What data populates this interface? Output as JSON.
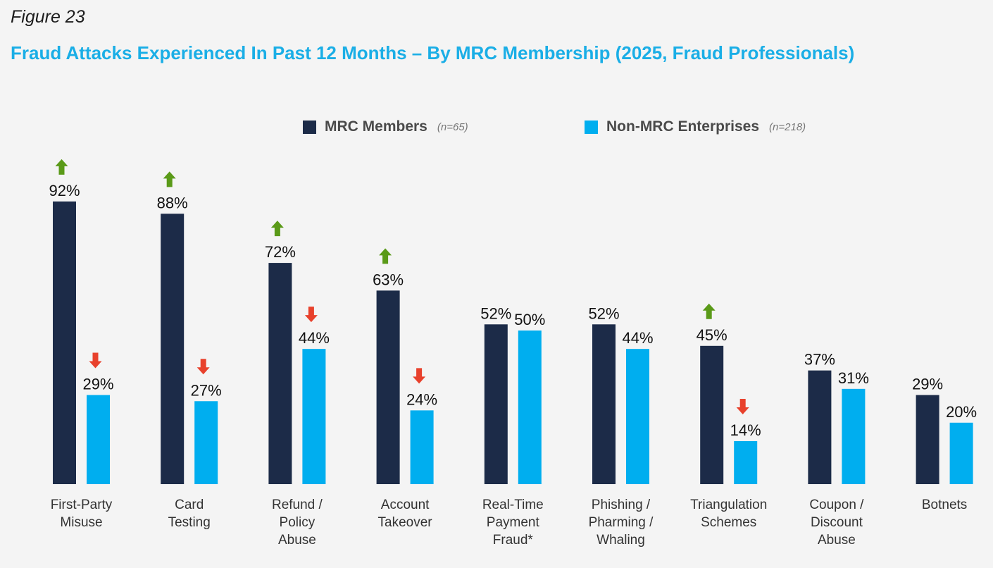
{
  "figure_label": "Figure 23",
  "chart_data": {
    "type": "bar",
    "title": "Fraud Attacks Experienced In Past 12 Months – By MRC Membership (2025, Fraud Professionals)",
    "xlabel": "",
    "ylabel": "",
    "ylim": [
      0,
      100
    ],
    "grid": false,
    "legend_position": "top-center",
    "categories": [
      [
        "First-Party",
        "Misuse"
      ],
      [
        "Card",
        "Testing"
      ],
      [
        "Refund /",
        "Policy",
        "Abuse"
      ],
      [
        "Account",
        "Takeover"
      ],
      [
        "Real-Time",
        "Payment",
        "Fraud*"
      ],
      [
        "Phishing /",
        "Pharming /",
        "Whaling"
      ],
      [
        "Triangulation",
        "Schemes"
      ],
      [
        "Coupon /",
        "Discount",
        "Abuse"
      ],
      [
        "Botnets"
      ]
    ],
    "series": [
      {
        "name": "MRC Members",
        "n_label": "(n=65)",
        "color": "#1c2b48",
        "values": [
          92,
          88,
          72,
          63,
          52,
          52,
          45,
          37,
          29
        ],
        "labels": [
          "92%",
          "88%",
          "72%",
          "63%",
          "52%",
          "52%",
          "45%",
          "37%",
          "29%"
        ],
        "indicators": [
          "up",
          "up",
          "up",
          "up",
          null,
          null,
          "up",
          null,
          null
        ]
      },
      {
        "name": "Non-MRC Enterprises",
        "n_label": "(n=218)",
        "color": "#00aeef",
        "values": [
          29,
          27,
          44,
          24,
          50,
          44,
          14,
          31,
          20
        ],
        "labels": [
          "29%",
          "27%",
          "44%",
          "24%",
          "50%",
          "44%",
          "14%",
          "31%",
          "20%"
        ],
        "indicators": [
          "down",
          "down",
          "down",
          "down",
          null,
          null,
          "down",
          null,
          null
        ]
      }
    ],
    "indicator_colors": {
      "up": "#5a9a18",
      "down": "#e8412c"
    }
  }
}
